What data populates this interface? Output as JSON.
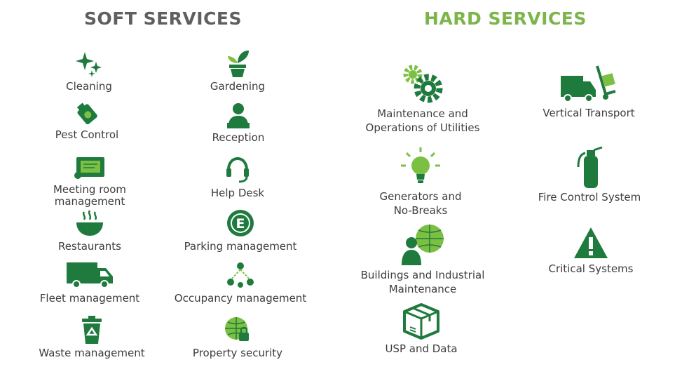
{
  "headings": {
    "soft": "SOFT SERVICES",
    "hard": "HARD SERVICES"
  },
  "soft_services": [
    {
      "label": "Cleaning",
      "icon": "sparkles-icon"
    },
    {
      "label": "Gardening",
      "icon": "potted-plant-icon"
    },
    {
      "label": "Pest Control",
      "icon": "spray-icon"
    },
    {
      "label": "Reception",
      "icon": "receptionist-icon"
    },
    {
      "label": "Meeting room\nmanagement",
      "icon": "presentation-board-icon"
    },
    {
      "label": "Help Desk",
      "icon": "headset-icon"
    },
    {
      "label": "Restaurants",
      "icon": "food-bowl-icon"
    },
    {
      "label": "Parking management",
      "icon": "parking-sign-icon"
    },
    {
      "label": "Fleet management",
      "icon": "van-icon"
    },
    {
      "label": "Occupancy management",
      "icon": "people-network-icon"
    },
    {
      "label": "Waste management",
      "icon": "recycle-bin-icon"
    },
    {
      "label": "Property security",
      "icon": "globe-lock-icon"
    }
  ],
  "hard_services": [
    {
      "label": "Maintenance and\nOperations of Utilities",
      "icon": "gears-icon"
    },
    {
      "label": "Vertical Transport",
      "icon": "truck-hand-cart-icon"
    },
    {
      "label": "Generators and\nNo-Breaks",
      "icon": "lightbulb-icon"
    },
    {
      "label": "Fire Control System",
      "icon": "fire-extinguisher-icon"
    },
    {
      "label": "Buildings and Industrial\nMaintenance",
      "icon": "person-globe-icon"
    },
    {
      "label": "Critical Systems",
      "icon": "warning-triangle-icon"
    },
    {
      "label": "USP and Data",
      "icon": "box-icon"
    }
  ],
  "colors": {
    "icon_dark_green": "#1f7a3d",
    "icon_light_green": "#7cc043",
    "hard_heading": "#7cb54c",
    "soft_heading": "#5f5f5f"
  }
}
